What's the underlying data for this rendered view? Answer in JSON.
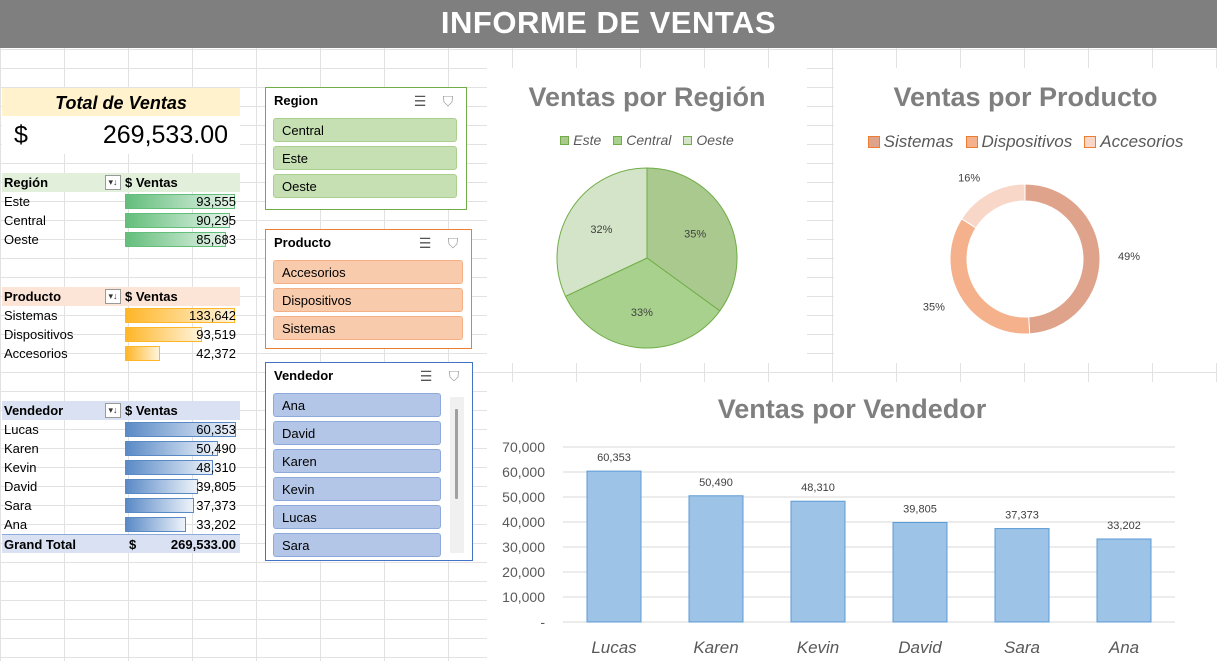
{
  "header": {
    "title": "INFORME DE VENTAS"
  },
  "total": {
    "label": "Total de Ventas",
    "currency": "$",
    "value": "269,533.00"
  },
  "pivots": {
    "region": {
      "col1": "Región",
      "col2": "$ Ventas",
      "rows": [
        {
          "label": "Este",
          "value": "93,555",
          "frac": 0.97
        },
        {
          "label": "Central",
          "value": "90,295",
          "frac": 0.93
        },
        {
          "label": "Oeste",
          "value": "85,683",
          "frac": 0.89
        }
      ]
    },
    "producto": {
      "col1": "Producto",
      "col2": "$ Ventas",
      "rows": [
        {
          "label": "Sistemas",
          "value": "133,642",
          "frac": 0.97
        },
        {
          "label": "Dispositivos",
          "value": "93,519",
          "frac": 0.68
        },
        {
          "label": "Accesorios",
          "value": "42,372",
          "frac": 0.31
        }
      ]
    },
    "vendedor": {
      "col1": "Vendedor",
      "col2": "$ Ventas",
      "rows": [
        {
          "label": "Lucas",
          "value": "60,353",
          "frac": 0.98
        },
        {
          "label": "Karen",
          "value": "50,490",
          "frac": 0.82
        },
        {
          "label": "Kevin",
          "value": "48,310",
          "frac": 0.78
        },
        {
          "label": "David",
          "value": "39,805",
          "frac": 0.65
        },
        {
          "label": "Sara",
          "value": "37,373",
          "frac": 0.61
        },
        {
          "label": "Ana",
          "value": "33,202",
          "frac": 0.54
        }
      ],
      "grand_label": "Grand Total",
      "grand_currency": "$",
      "grand_value": "269,533.00"
    }
  },
  "slicers": {
    "region": {
      "title": "Region",
      "items": [
        "Central",
        "Este",
        "Oeste"
      ]
    },
    "producto": {
      "title": "Producto",
      "items": [
        "Accesorios",
        "Dispositivos",
        "Sistemas"
      ]
    },
    "vendedor": {
      "title": "Vendedor",
      "items": [
        "Ana",
        "David",
        "Karen",
        "Kevin",
        "Lucas",
        "Sara"
      ]
    }
  },
  "icons": {
    "multiselect": "multi-select-icon",
    "clear_filter": "clear-filter-icon",
    "dropdown": "filter-dropdown-icon"
  },
  "chart_data": [
    {
      "type": "pie",
      "title": "Ventas por Región",
      "legend": "top",
      "categories": [
        "Este",
        "Central",
        "Oeste"
      ],
      "values": [
        35,
        33,
        32
      ],
      "labels": [
        "35%",
        "33%",
        "32%"
      ],
      "colors": [
        "#a9c98f",
        "#a9d18e",
        "#d3e4c8"
      ]
    },
    {
      "type": "pie",
      "title": "Ventas por Producto",
      "legend": "top",
      "categories": [
        "Sistemas",
        "Dispositivos",
        "Accesorios"
      ],
      "values": [
        49,
        35,
        16
      ],
      "labels": [
        "49%",
        "35%",
        "16%"
      ],
      "colors": [
        "#dea38a",
        "#f4b18b",
        "#f8d7c9"
      ]
    },
    {
      "type": "bar",
      "title": "Ventas por Vendedor",
      "categories": [
        "Lucas",
        "Karen",
        "Kevin",
        "David",
        "Sara",
        "Ana"
      ],
      "values": [
        60353,
        50490,
        48310,
        39805,
        37373,
        33202
      ],
      "value_labels": [
        "60,353",
        "50,490",
        "48,310",
        "39,805",
        "37,373",
        "33,202"
      ],
      "ylim": [
        0,
        70000
      ],
      "yticks": [
        "-",
        "10,000",
        "20,000",
        "30,000",
        "40,000",
        "50,000",
        "60,000",
        "70,000"
      ],
      "grid": true,
      "color": "#9dc3e6"
    }
  ]
}
